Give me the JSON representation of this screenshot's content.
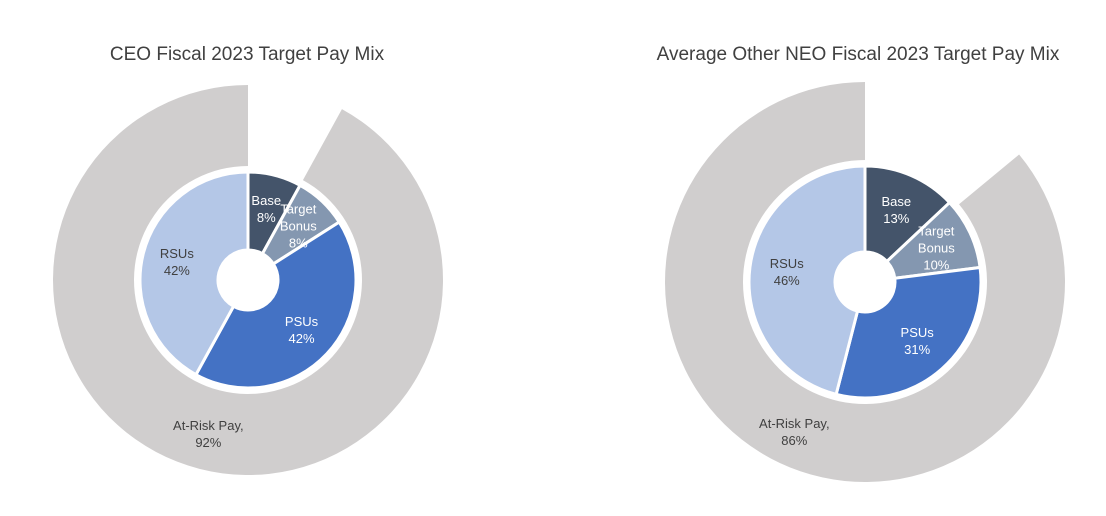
{
  "chart_data": [
    {
      "type": "donut",
      "title": "CEO Fiscal 2023 Target Pay Mix",
      "categories": [
        "Base",
        "Target Bonus",
        "PSUs",
        "RSUs"
      ],
      "values": [
        8,
        8,
        42,
        42
      ],
      "value_labels": [
        "8%",
        "8%",
        "42%",
        "42%"
      ],
      "colors": [
        "#44546a",
        "#8497b0",
        "#4472c4",
        "#b4c7e7"
      ],
      "outer": {
        "name": "At-Risk Pay,",
        "value": 92,
        "value_label": "92%",
        "color": "#d0cece"
      }
    },
    {
      "type": "donut",
      "title": "Average Other NEO Fiscal 2023 Target Pay Mix",
      "categories": [
        "Base",
        "Target Bonus",
        "PSUs",
        "RSUs"
      ],
      "values": [
        13,
        10,
        31,
        46
      ],
      "value_labels": [
        "13%",
        "10%",
        "31%",
        "46%"
      ],
      "colors": [
        "#44546a",
        "#8497b0",
        "#4472c4",
        "#b4c7e7"
      ],
      "outer": {
        "name": "At-Risk Pay,",
        "value": 86,
        "value_label": "86%",
        "color": "#d0cece"
      }
    }
  ]
}
